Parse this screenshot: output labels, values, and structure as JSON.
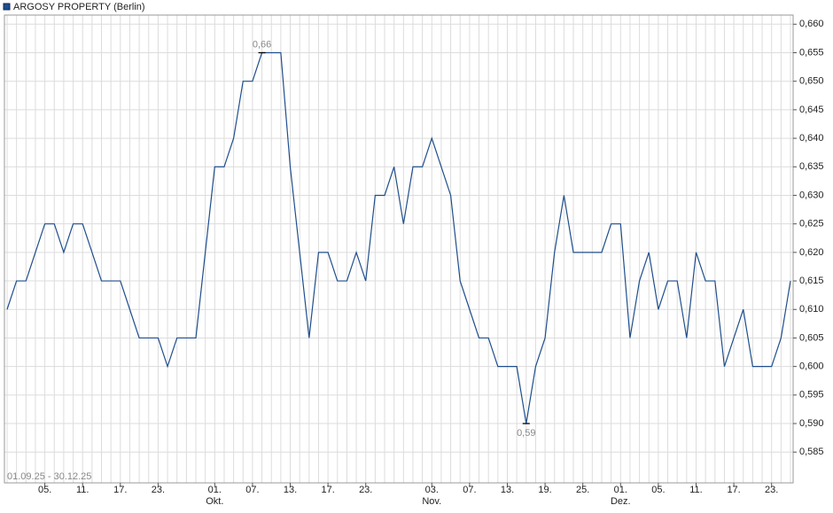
{
  "chart_data": {
    "type": "line",
    "range_label": "01.09.25 - 30.12.25",
    "ylim": [
      0.5796,
      0.6616
    ],
    "yticks": [
      {
        "value": 0.585,
        "label": "0,585"
      },
      {
        "value": 0.59,
        "label": "0,590"
      },
      {
        "value": 0.595,
        "label": "0,595"
      },
      {
        "value": 0.6,
        "label": "0,600"
      },
      {
        "value": 0.605,
        "label": "0,605"
      },
      {
        "value": 0.61,
        "label": "0,610"
      },
      {
        "value": 0.615,
        "label": "0,615"
      },
      {
        "value": 0.62,
        "label": "0,620"
      },
      {
        "value": 0.625,
        "label": "0,625"
      },
      {
        "value": 0.63,
        "label": "0,630"
      },
      {
        "value": 0.635,
        "label": "0,635"
      },
      {
        "value": 0.64,
        "label": "0,640"
      },
      {
        "value": 0.645,
        "label": "0,645"
      },
      {
        "value": 0.65,
        "label": "0,650"
      },
      {
        "value": 0.655,
        "label": "0,655"
      },
      {
        "value": 0.66,
        "label": "0,660"
      }
    ],
    "grid": true,
    "categories": [
      null,
      null,
      null,
      null,
      "05.",
      null,
      null,
      null,
      "11.",
      null,
      null,
      null,
      "17.",
      null,
      null,
      null,
      "23.",
      null,
      null,
      null,
      null,
      null,
      "01.",
      null,
      null,
      null,
      "07.",
      null,
      null,
      null,
      "13.",
      null,
      null,
      null,
      "17.",
      null,
      null,
      null,
      "23.",
      null,
      null,
      null,
      null,
      null,
      null,
      "03.",
      null,
      null,
      null,
      "07.",
      null,
      null,
      null,
      "13.",
      null,
      null,
      null,
      "19.",
      null,
      null,
      null,
      "25.",
      null,
      null,
      null,
      "01.",
      null,
      null,
      null,
      "05.",
      null,
      null,
      null,
      "11.",
      null,
      null,
      null,
      "17.",
      null,
      null,
      null,
      "23.",
      null,
      null
    ],
    "category_months": [
      null,
      null,
      null,
      null,
      null,
      null,
      null,
      null,
      null,
      null,
      null,
      null,
      null,
      null,
      null,
      null,
      null,
      null,
      null,
      null,
      null,
      null,
      "Okt.",
      null,
      null,
      null,
      null,
      null,
      null,
      null,
      null,
      null,
      null,
      null,
      null,
      null,
      null,
      null,
      null,
      null,
      null,
      null,
      null,
      null,
      null,
      "Nov.",
      null,
      null,
      null,
      null,
      null,
      null,
      null,
      null,
      null,
      null,
      null,
      null,
      null,
      null,
      null,
      null,
      null,
      null,
      null,
      "Dez.",
      null,
      null,
      null,
      null,
      null,
      null,
      null,
      null,
      null,
      null,
      null,
      null,
      null,
      null,
      null,
      null,
      null,
      null
    ],
    "series": [
      {
        "name": "ARGOSY PROPERTY (Berlin)",
        "color": "#1f4e8c",
        "values": [
          0.61,
          0.615,
          0.615,
          0.62,
          0.625,
          0.625,
          0.62,
          0.625,
          0.625,
          0.62,
          0.615,
          0.615,
          0.615,
          0.61,
          0.605,
          0.605,
          0.605,
          0.6,
          0.605,
          0.605,
          0.605,
          0.62,
          0.635,
          0.635,
          0.64,
          0.65,
          0.65,
          0.655,
          0.655,
          0.655,
          0.635,
          0.62,
          0.605,
          0.62,
          0.62,
          0.615,
          0.615,
          0.62,
          0.615,
          0.63,
          0.63,
          0.635,
          0.625,
          0.635,
          0.635,
          0.64,
          0.635,
          0.63,
          0.615,
          0.61,
          0.605,
          0.605,
          0.6,
          0.6,
          0.6,
          0.59,
          0.6,
          0.605,
          0.62,
          0.63,
          0.62,
          0.62,
          0.62,
          0.62,
          0.625,
          0.625,
          0.605,
          0.615,
          0.62,
          0.61,
          0.615,
          0.615,
          0.605,
          0.62,
          0.615,
          0.615,
          0.6,
          0.605,
          0.61,
          0.6,
          0.6,
          0.6,
          0.605,
          0.615
        ],
        "value_labels": [
          null,
          null,
          null,
          null,
          null,
          null,
          null,
          null,
          null,
          null,
          null,
          null,
          null,
          null,
          null,
          null,
          null,
          null,
          null,
          null,
          null,
          null,
          null,
          null,
          null,
          null,
          null,
          "0,66",
          null,
          null,
          null,
          null,
          null,
          null,
          null,
          null,
          null,
          null,
          null,
          null,
          null,
          null,
          null,
          null,
          null,
          null,
          null,
          null,
          null,
          null,
          null,
          null,
          null,
          null,
          null,
          "0,59",
          null,
          null,
          null,
          null,
          null,
          null,
          null,
          null,
          null,
          null,
          null,
          null,
          null,
          null,
          null,
          null,
          null,
          null,
          null,
          null,
          null,
          null,
          null,
          null,
          null,
          null,
          null,
          null
        ]
      }
    ]
  }
}
